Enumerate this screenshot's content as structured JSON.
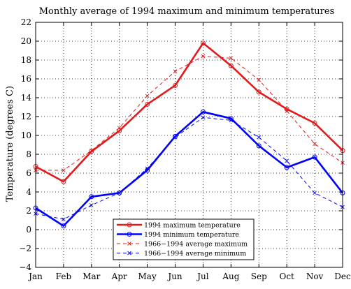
{
  "chart_data": {
    "type": "line",
    "title": "Monthly average of 1994 maximum and minimum temperatures",
    "xlabel": "",
    "ylabel": "Temperature (degrees C)",
    "categories": [
      "Jan",
      "Feb",
      "Mar",
      "Apr",
      "May",
      "Jun",
      "Jul",
      "Aug",
      "Sep",
      "Oct",
      "Nov",
      "Dec"
    ],
    "ylim": [
      -4,
      22
    ],
    "yticks": [
      -4,
      -2,
      0,
      2,
      4,
      6,
      8,
      10,
      12,
      14,
      16,
      18,
      20,
      22
    ],
    "grid": true,
    "legend_position": "bottom-center",
    "series": [
      {
        "name": "1994 maximum temperature",
        "color": "#e31a1c",
        "style": "solid",
        "marker": "circle",
        "values": [
          6.7,
          5.1,
          8.3,
          10.5,
          13.3,
          15.3,
          19.8,
          17.4,
          14.6,
          12.8,
          11.3,
          8.4
        ]
      },
      {
        "name": "1994 minimum temperature",
        "color": "#0000ff",
        "style": "solid",
        "marker": "circle",
        "values": [
          2.3,
          0.4,
          3.5,
          3.9,
          6.3,
          9.9,
          12.5,
          11.8,
          8.9,
          6.6,
          7.7,
          3.9
        ]
      },
      {
        "name": "1966−1994 average maximum",
        "color": "#e31a1c",
        "style": "dashed",
        "marker": "x",
        "values": [
          6.3,
          6.3,
          8.4,
          10.8,
          14.2,
          16.8,
          18.4,
          18.2,
          15.9,
          12.6,
          9.1,
          7.1
        ]
      },
      {
        "name": "1966−1994 average minimum",
        "color": "#0000ff",
        "style": "dashed",
        "marker": "x",
        "values": [
          1.7,
          1.1,
          2.6,
          3.9,
          6.5,
          9.8,
          11.9,
          11.6,
          9.8,
          7.3,
          3.9,
          2.4
        ]
      }
    ]
  }
}
